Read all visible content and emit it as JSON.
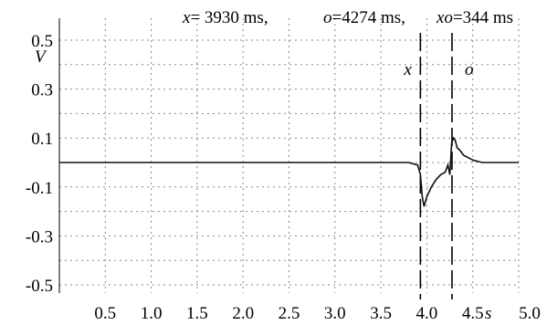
{
  "header": {
    "x_var": "x",
    "x_text": "= 3930 ms,",
    "o_var": "o",
    "o_text": "=4274 ms,",
    "xo_var": "xo",
    "xo_text": "=344 ms"
  },
  "chart_data": {
    "type": "line",
    "ylabel": "V",
    "xlabel": "s",
    "xlim": [
      0,
      5.0
    ],
    "ylim": [
      -0.5,
      0.5
    ],
    "grid": true,
    "x_ticks": [
      "0.5",
      "1.0",
      "1.5",
      "2.0",
      "2.5",
      "3.0",
      "3.5",
      "4.0",
      "4.5",
      "5.0"
    ],
    "y_ticks": [
      "0.5",
      "0.3",
      "0.1",
      "-0.1",
      "-0.3",
      "-0.5"
    ],
    "markers": [
      {
        "label": "x",
        "x": 3.93
      },
      {
        "label": "o",
        "x": 4.274
      }
    ],
    "series": [
      {
        "x": [
          0,
          0.5,
          1.0,
          1.5,
          2.0,
          2.5,
          3.0,
          3.5,
          3.8,
          3.9,
          3.93,
          3.95,
          3.97,
          4.0,
          4.05,
          4.1,
          4.15,
          4.2,
          4.23,
          4.25,
          4.27,
          4.29,
          4.31,
          4.33,
          4.36,
          4.4,
          4.5,
          4.6,
          4.7,
          4.8,
          4.9,
          5.0
        ],
        "y": [
          0.0,
          0.0,
          0.0,
          0.0,
          0.0,
          0.0,
          0.0,
          0.0,
          0.0,
          -0.01,
          -0.05,
          -0.14,
          -0.18,
          -0.14,
          -0.1,
          -0.07,
          -0.05,
          -0.04,
          -0.01,
          -0.05,
          0.08,
          0.1,
          0.09,
          0.06,
          0.05,
          0.03,
          0.01,
          0.0,
          0.0,
          0.0,
          0.0,
          0.0
        ]
      }
    ]
  }
}
